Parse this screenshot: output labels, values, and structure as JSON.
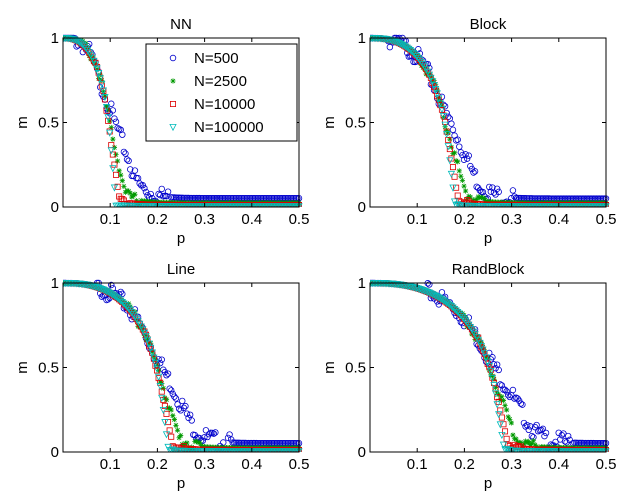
{
  "chart_data": [
    {
      "type": "scatter",
      "title": "NN",
      "xlabel": "p",
      "ylabel": "m",
      "xlim": [
        0,
        0.5
      ],
      "ylim": [
        0,
        1
      ],
      "xticks": [
        "0.1",
        "0.2",
        "0.3",
        "0.4",
        "0.5"
      ],
      "yticks": [
        "0",
        "0.5",
        "1"
      ],
      "pc": 0.105,
      "legend_position": "top-right",
      "series": [
        {
          "name": "N=500",
          "marker": "circle",
          "color": "#0000cc",
          "tail": 0.052
        },
        {
          "name": "N=2500",
          "marker": "asterisk",
          "color": "#009900",
          "tail": 0.025
        },
        {
          "name": "N=10000",
          "marker": "square",
          "color": "#dd0000",
          "tail": 0.012
        },
        {
          "name": "N=100000",
          "marker": "triangle",
          "color": "#00bbbb",
          "tail": 0.004
        }
      ]
    },
    {
      "type": "scatter",
      "title": "Block",
      "xlabel": "p",
      "ylabel": "m",
      "xlim": [
        0,
        0.5
      ],
      "ylim": [
        0,
        1
      ],
      "xticks": [
        "0.1",
        "0.2",
        "0.3",
        "0.4",
        "0.5"
      ],
      "yticks": [
        "0",
        "0.5",
        "1"
      ],
      "pc": 0.172,
      "series": [
        {
          "name": "N=500",
          "marker": "circle",
          "color": "#0000cc",
          "tail": 0.05
        },
        {
          "name": "N=2500",
          "marker": "asterisk",
          "color": "#009900",
          "tail": 0.025
        },
        {
          "name": "N=10000",
          "marker": "square",
          "color": "#dd0000",
          "tail": 0.012
        },
        {
          "name": "N=100000",
          "marker": "triangle",
          "color": "#00bbbb",
          "tail": 0.004
        }
      ]
    },
    {
      "type": "scatter",
      "title": "Line",
      "xlabel": "p",
      "ylabel": "m",
      "xlim": [
        0,
        0.5
      ],
      "ylim": [
        0,
        1
      ],
      "xticks": [
        "0.1",
        "0.2",
        "0.3",
        "0.4",
        "0.5"
      ],
      "yticks": [
        "0",
        "0.5",
        "1"
      ],
      "pc": 0.215,
      "series": [
        {
          "name": "N=500",
          "marker": "circle",
          "color": "#0000cc",
          "tail": 0.052
        },
        {
          "name": "N=2500",
          "marker": "asterisk",
          "color": "#009900",
          "tail": 0.025
        },
        {
          "name": "N=10000",
          "marker": "square",
          "color": "#dd0000",
          "tail": 0.012
        },
        {
          "name": "N=100000",
          "marker": "triangle",
          "color": "#00bbbb",
          "tail": 0.004
        }
      ]
    },
    {
      "type": "scatter",
      "title": "RandBlock",
      "xlabel": "p",
      "ylabel": "m",
      "xlim": [
        0,
        0.5
      ],
      "ylim": [
        0,
        1
      ],
      "xticks": [
        "0.1",
        "0.2",
        "0.3",
        "0.4",
        "0.5"
      ],
      "yticks": [
        "0",
        "0.5",
        "1"
      ],
      "pc": 0.275,
      "series": [
        {
          "name": "N=500",
          "marker": "circle",
          "color": "#0000cc",
          "tail": 0.052
        },
        {
          "name": "N=2500",
          "marker": "asterisk",
          "color": "#009900",
          "tail": 0.025
        },
        {
          "name": "N=10000",
          "marker": "square",
          "color": "#dd0000",
          "tail": 0.012
        },
        {
          "name": "N=100000",
          "marker": "triangle",
          "color": "#00bbbb",
          "tail": 0.004
        }
      ]
    }
  ]
}
